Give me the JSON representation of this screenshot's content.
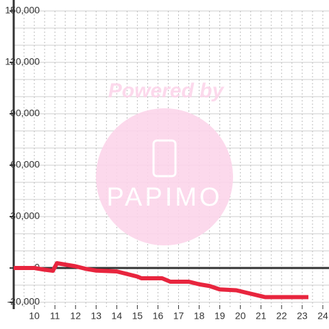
{
  "chart_data": {
    "type": "line",
    "watermark": {
      "title": "Powered by",
      "brand": "PAPIMO"
    },
    "x": [
      9,
      10,
      10.5,
      10.9,
      11.1,
      12,
      12.5,
      13,
      14,
      14.5,
      15,
      15.2,
      16.2,
      16.6,
      17.5,
      18,
      18.5,
      19,
      19.8,
      20.5,
      21.2,
      22,
      23.3
    ],
    "series": [
      {
        "color": "#e8253e",
        "values": [
          0,
          0,
          -1000,
          -1600,
          2800,
          1000,
          -500,
          -1500,
          -2000,
          -3500,
          -5000,
          -6000,
          -6000,
          -8000,
          -8000,
          -9500,
          -10500,
          -12500,
          -13000,
          -15000,
          -17000,
          -17000,
          -17000
        ]
      }
    ],
    "xlim": [
      9,
      24.3
    ],
    "xticks": [
      10,
      11,
      12,
      13,
      14,
      15,
      16,
      17,
      18,
      19,
      20,
      21,
      22,
      23,
      24
    ],
    "ylim": [
      -24000,
      150000
    ],
    "yticks": [
      {
        "value": -20000,
        "label": "-20,000"
      },
      0,
      {
        "value": 30000,
        "label": "30,000"
      },
      {
        "value": 60000,
        "label": "60,000"
      },
      {
        "value": 90000,
        "label": "90,000"
      },
      {
        "value": 120000,
        "label": "120,000"
      },
      {
        "value": 150000,
        "label": "150,000"
      }
    ],
    "y_grid_step": 10000,
    "x_grid_step": 0.5,
    "grid": true
  }
}
